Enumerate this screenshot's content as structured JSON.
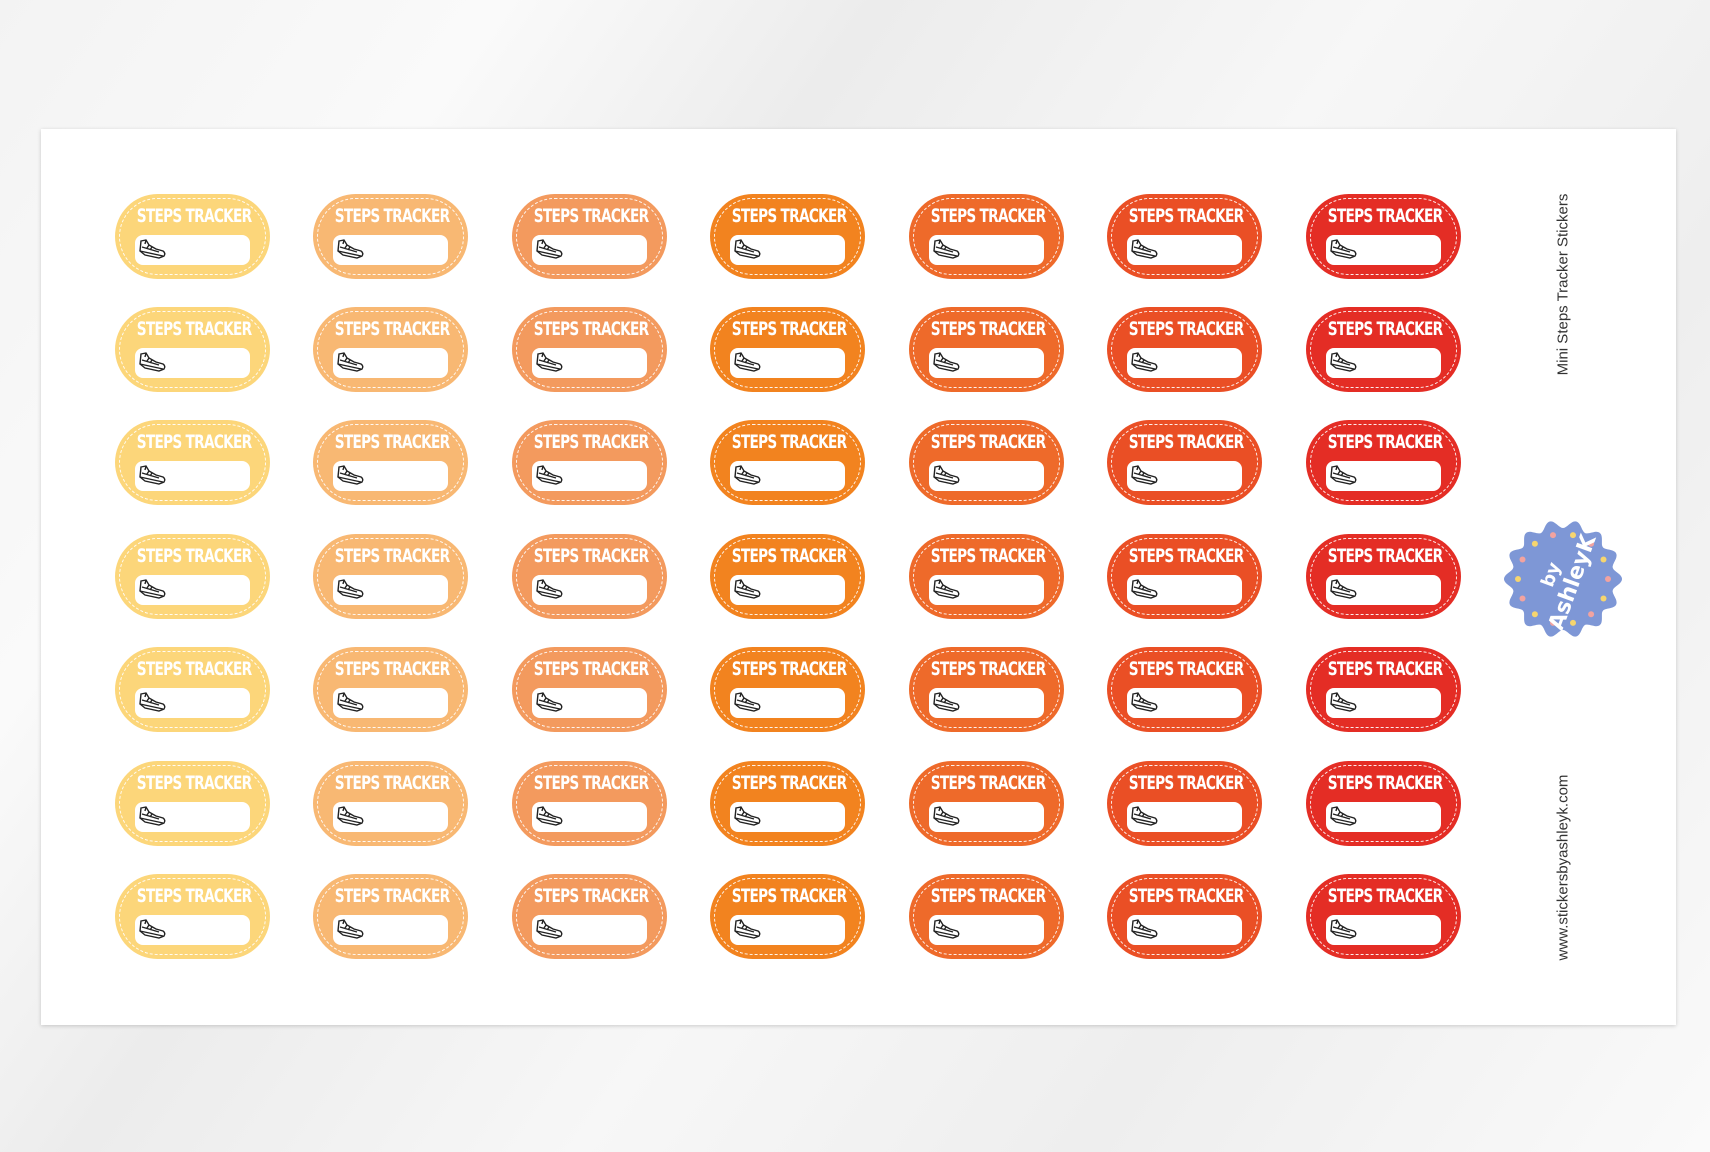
{
  "sheet": {
    "title": "Mini Steps Tracker Stickers",
    "website": "www.stickersbyashleyk.com",
    "logo_text": "by AshleyK",
    "logo_color": "#7e97d6"
  },
  "sticker": {
    "label": "STEPS TRACKER",
    "icon": "sneaker-icon",
    "rows": 7,
    "column_colors": [
      "#fcd67a",
      "#f8b873",
      "#f39a5e",
      "#f2831f",
      "#ee6a2a",
      "#ea4f25",
      "#e42d25"
    ]
  }
}
